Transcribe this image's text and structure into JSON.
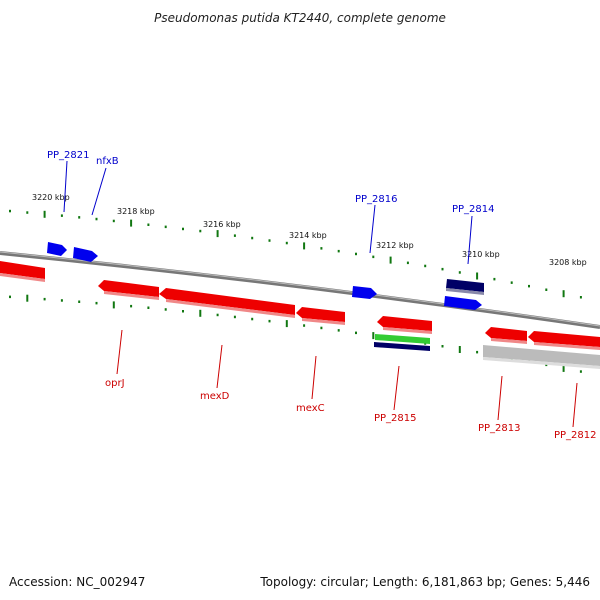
{
  "title": "Pseudomonas putida KT2440, complete genome",
  "footer": {
    "accession": "Accession: NC_002947",
    "summary": "Topology: circular; Length: 6,181,863 bp; Genes: 5,446"
  },
  "ticks": [
    "3220 kbp",
    "3218 kbp",
    "3216 kbp",
    "3214 kbp",
    "3212 kbp",
    "3210 kbp",
    "3208 kbp"
  ],
  "colors": {
    "forward_gene": "#0000ee",
    "forward_gene_dark": "#000066",
    "reverse_gene": "#ee0000",
    "rna_gene": "#33cc33",
    "pseudo_gene": "#bbbbbb",
    "tick": "#117711",
    "backbone": "#888888",
    "forward_label": "#0000cc",
    "reverse_label": "#cc0000"
  },
  "forward_labels": [
    "PP_2821",
    "nfxB",
    "PP_2816",
    "PP_2814"
  ],
  "reverse_labels": [
    "oprJ",
    "mexD",
    "mexC",
    "PP_2815",
    "PP_2813",
    "PP_2812"
  ]
}
